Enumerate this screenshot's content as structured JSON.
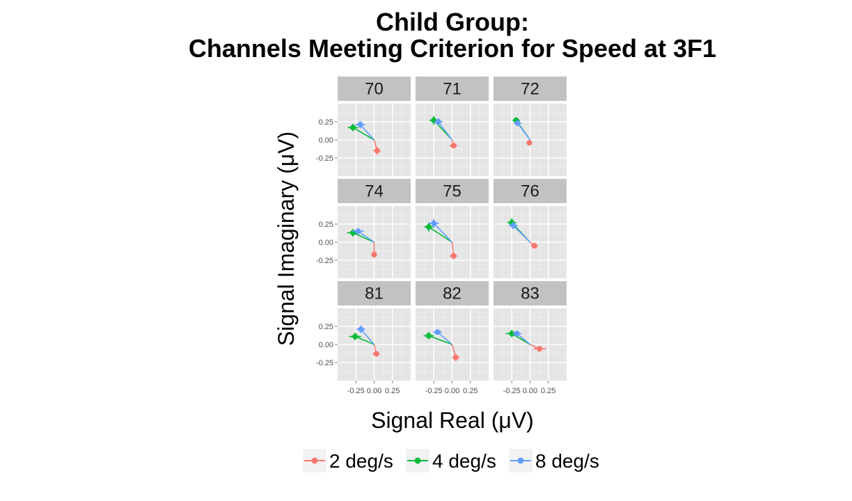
{
  "chart_data": {
    "type": "line",
    "title": [
      "Child Group:",
      "Channels Meeting Criterion for Speed at 3F1"
    ],
    "xlabel": "Signal Real (μV)",
    "ylabel": "Signal Imaginary (μV)",
    "xlim": [
      -0.5,
      0.5
    ],
    "ylim": [
      -0.5,
      0.5
    ],
    "x_ticks": [
      "-0.25",
      "0.00",
      "0.25"
    ],
    "y_ticks": [
      "0.25",
      "0.00",
      "-0.25"
    ],
    "x_tick_values": [
      -0.25,
      0.0,
      0.25
    ],
    "y_tick_values": [
      0.25,
      0.0,
      -0.25
    ],
    "grid": true,
    "legend_position": "bottom",
    "series": [
      {
        "name": "2 deg/s",
        "color": "#F8766D"
      },
      {
        "name": "4 deg/s",
        "color": "#00BA38"
      },
      {
        "name": "8 deg/s",
        "color": "#619CFF"
      }
    ],
    "panels": [
      {
        "label": "70",
        "points": [
          {
            "x": 0.04,
            "y": -0.15,
            "xerr": 0.05,
            "yerr": 0.05
          },
          {
            "x": -0.29,
            "y": 0.17,
            "xerr": 0.07,
            "yerr": 0.05
          },
          {
            "x": -0.19,
            "y": 0.21,
            "xerr": 0.07,
            "yerr": 0.05
          }
        ]
      },
      {
        "label": "71",
        "points": [
          {
            "x": 0.02,
            "y": -0.08,
            "xerr": 0.05,
            "yerr": 0.04
          },
          {
            "x": -0.25,
            "y": 0.27,
            "xerr": 0.06,
            "yerr": 0.06
          },
          {
            "x": -0.19,
            "y": 0.25,
            "xerr": 0.06,
            "yerr": 0.05
          }
        ]
      },
      {
        "label": "72",
        "points": [
          {
            "x": -0.01,
            "y": -0.04,
            "xerr": 0.04,
            "yerr": 0.03
          },
          {
            "x": -0.19,
            "y": 0.27,
            "xerr": 0.05,
            "yerr": 0.04
          },
          {
            "x": -0.17,
            "y": 0.23,
            "xerr": 0.05,
            "yerr": 0.04
          }
        ]
      },
      {
        "label": "74",
        "points": [
          {
            "x": 0.0,
            "y": -0.17,
            "xerr": 0.04,
            "yerr": 0.05
          },
          {
            "x": -0.29,
            "y": 0.13,
            "xerr": 0.08,
            "yerr": 0.05
          },
          {
            "x": -0.22,
            "y": 0.15,
            "xerr": 0.08,
            "yerr": 0.04
          }
        ]
      },
      {
        "label": "75",
        "points": [
          {
            "x": 0.02,
            "y": -0.19,
            "xerr": 0.05,
            "yerr": 0.05
          },
          {
            "x": -0.32,
            "y": 0.21,
            "xerr": 0.06,
            "yerr": 0.06
          },
          {
            "x": -0.25,
            "y": 0.26,
            "xerr": 0.07,
            "yerr": 0.06
          }
        ]
      },
      {
        "label": "76",
        "points": [
          {
            "x": 0.06,
            "y": -0.05,
            "xerr": 0.05,
            "yerr": 0.04
          },
          {
            "x": -0.25,
            "y": 0.27,
            "xerr": 0.06,
            "yerr": 0.06
          },
          {
            "x": -0.23,
            "y": 0.23,
            "xerr": 0.06,
            "yerr": 0.05
          }
        ]
      },
      {
        "label": "81",
        "points": [
          {
            "x": 0.03,
            "y": -0.13,
            "xerr": 0.05,
            "yerr": 0.04
          },
          {
            "x": -0.26,
            "y": 0.11,
            "xerr": 0.08,
            "yerr": 0.05
          },
          {
            "x": -0.18,
            "y": 0.21,
            "xerr": 0.06,
            "yerr": 0.05
          }
        ]
      },
      {
        "label": "82",
        "points": [
          {
            "x": 0.05,
            "y": -0.18,
            "xerr": 0.05,
            "yerr": 0.05
          },
          {
            "x": -0.32,
            "y": 0.12,
            "xerr": 0.07,
            "yerr": 0.05
          },
          {
            "x": -0.2,
            "y": 0.17,
            "xerr": 0.06,
            "yerr": 0.04
          }
        ]
      },
      {
        "label": "83",
        "points": [
          {
            "x": 0.13,
            "y": -0.06,
            "xerr": 0.08,
            "yerr": 0.04
          },
          {
            "x": -0.25,
            "y": 0.15,
            "xerr": 0.08,
            "yerr": 0.05
          },
          {
            "x": -0.18,
            "y": 0.15,
            "xerr": 0.06,
            "yerr": 0.04
          }
        ]
      }
    ]
  }
}
